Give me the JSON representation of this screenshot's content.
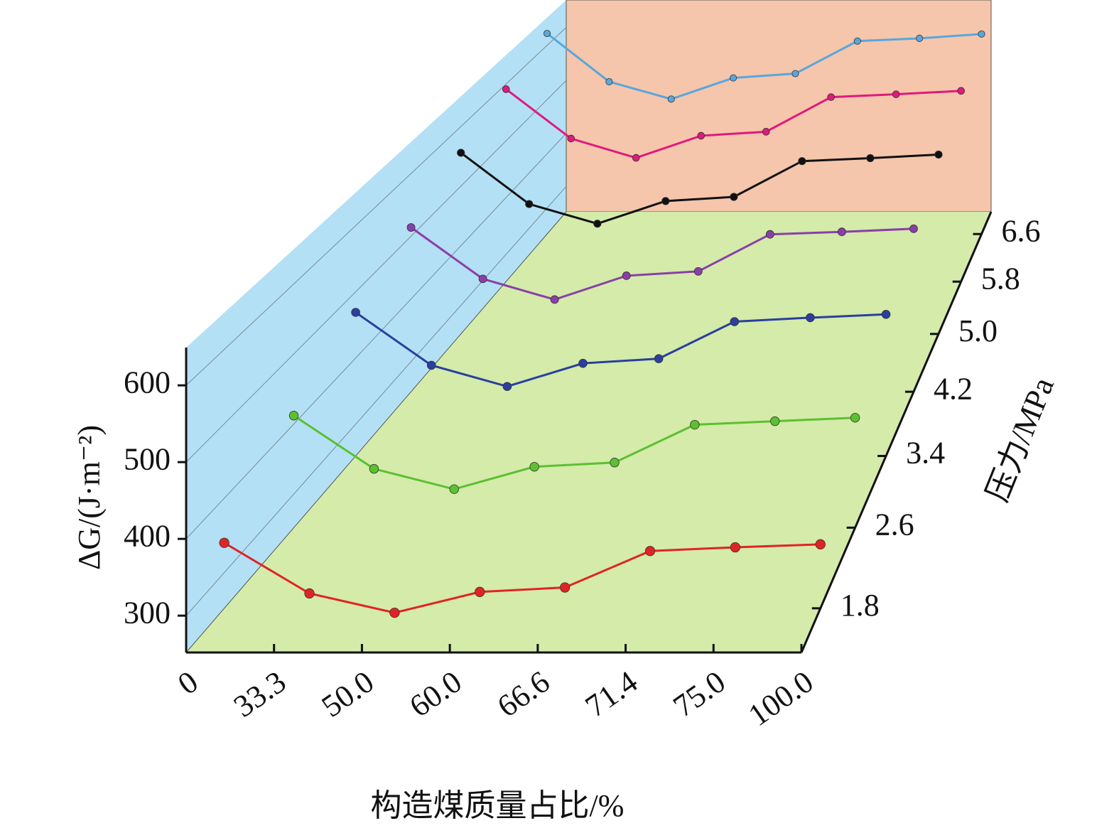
{
  "chart_data": {
    "type": "line3d",
    "xlabel": "构造煤质量占比/%",
    "ylabel": "ΔG/(J·m⁻²)",
    "zlabel": "压力/MPa",
    "categories": [
      "0",
      "33.3",
      "50.0",
      "60.0",
      "66.6",
      "71.4",
      "75.0",
      "100.0"
    ],
    "ylim": [
      252,
      650
    ],
    "yticks": [
      300,
      400,
      500,
      600
    ],
    "zlim": [
      1.4,
      7.0
    ],
    "zticks": [
      1.8,
      2.6,
      3.4,
      4.2,
      {
        "value": 5,
        "label": "5.0"
      },
      5.8,
      6.6
    ],
    "series": [
      {
        "color": "#e02424",
        "values": [
          340,
          272,
          246,
          274,
          280,
          329,
          334,
          338
        ]
      },
      {
        "color": "#5cc030",
        "values": [
          412,
          336,
          307,
          339,
          345,
          399,
          404,
          409
        ]
      },
      {
        "color": "#2b3f9e",
        "values": [
          469,
          389,
          357,
          392,
          399,
          455,
          461,
          466
        ]
      },
      {
        "color": "#8a3fa8",
        "values": [
          514,
          432,
          399,
          437,
          444,
          503,
          507,
          512
        ]
      },
      {
        "color": "#111111",
        "values": [
          556,
          470,
          437,
          475,
          482,
          542,
          547,
          553
        ]
      },
      {
        "color": "#e0197d",
        "values": [
          591,
          504,
          470,
          509,
          516,
          577,
          582,
          588
        ]
      },
      {
        "color": "#5aa6dc",
        "values": [
          622,
          533,
          501,
          540,
          548,
          608,
          613,
          621
        ]
      }
    ]
  }
}
